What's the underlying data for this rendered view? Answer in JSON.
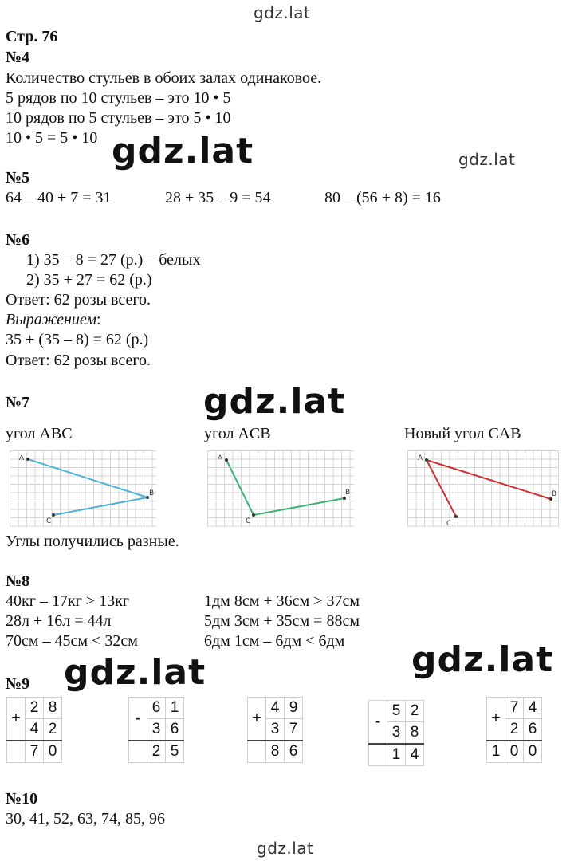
{
  "watermark": "gdz.lat",
  "page_heading": "Стр. 76",
  "n4": {
    "title": "№4",
    "lines": [
      "Количество стульев в обоих залах одинаковое.",
      "5 рядов по 10 стульев – это 10 • 5",
      "10 рядов по 5 стульев – это 5 • 10",
      "10 • 5 = 5 • 10"
    ]
  },
  "n5": {
    "title": "№5",
    "exprs": [
      "64 – 40 + 7 = 31",
      "28 + 35 – 9 = 54",
      "80 – (56 + 8) = 16"
    ]
  },
  "n6": {
    "title": "№6",
    "step1": "1) 35 – 8 = 27 (р.) – белых",
    "step2": "2) 35 + 27 = 62 (р.)",
    "answer1": "Ответ: 62 розы всего.",
    "expr_label": "Выражением",
    "expr_colon": ":",
    "expr": "35 + (35 – 8) = 62 (р.)",
    "answer2": "Ответ: 62 розы всего."
  },
  "n7": {
    "title": "№7",
    "labels": [
      "угол ABC",
      "угол ACB",
      "Новый угол CAB"
    ],
    "conclusion": "Углы получились разные.",
    "colors": [
      "#4fb3d9",
      "#3cb371",
      "#cc3333"
    ],
    "points": {
      "a": "A",
      "b": "B",
      "c": "C"
    }
  },
  "n8": {
    "title": "№8",
    "left": [
      "40кг – 17кг > 13кг",
      "28л + 16л = 44л",
      "70см – 45см < 32см"
    ],
    "right": [
      "1дм 8см + 36см > 37см",
      "5дм 3см + 35см = 88см",
      "6дм 1см – 6дм < 6дм"
    ]
  },
  "n9": {
    "title": "№9",
    "ops": [
      {
        "sign": "+",
        "top": [
          "2",
          "8"
        ],
        "bottom": [
          "4",
          "2"
        ],
        "result": [
          "7",
          "0"
        ]
      },
      {
        "sign": "-",
        "top": [
          "6",
          "1"
        ],
        "bottom": [
          "3",
          "6"
        ],
        "result": [
          "2",
          "5"
        ]
      },
      {
        "sign": "+",
        "top": [
          "4",
          "9"
        ],
        "bottom": [
          "3",
          "7"
        ],
        "result": [
          "8",
          "6"
        ]
      },
      {
        "sign": "-",
        "top": [
          "5",
          "2"
        ],
        "bottom": [
          "3",
          "8"
        ],
        "result": [
          "1",
          "4"
        ]
      },
      {
        "sign": "+",
        "top": [
          "7",
          "4"
        ],
        "bottom": [
          "2",
          "6"
        ],
        "result": [
          "1",
          "0",
          "0"
        ]
      }
    ]
  },
  "n10": {
    "title": "№10",
    "sequence": "30, 41, 52, 63, 74, 85, 96"
  }
}
